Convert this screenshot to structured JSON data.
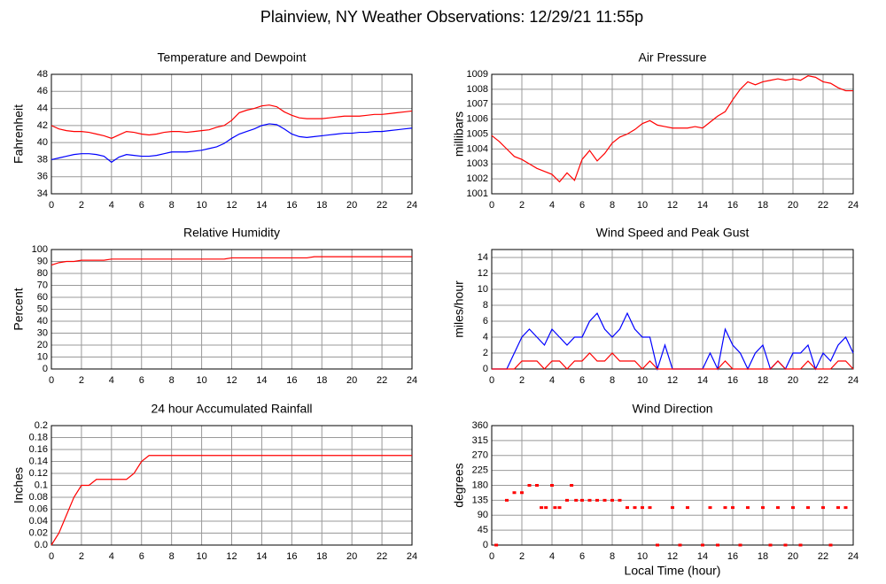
{
  "title": "Plainview, NY Weather Observations: 12/29/21 11:55p",
  "chart_data": [
    {
      "type": "line",
      "title": "Temperature and Dewpoint",
      "ylabel": "Fahrenheit",
      "x": [
        0,
        0.5,
        1,
        1.5,
        2,
        2.5,
        3,
        3.5,
        4,
        4.5,
        5,
        5.5,
        6,
        6.5,
        7,
        7.5,
        8,
        8.5,
        9,
        9.5,
        10,
        10.5,
        11,
        11.5,
        12,
        12.5,
        13,
        13.5,
        14,
        14.5,
        15,
        15.5,
        16,
        16.5,
        17,
        17.5,
        18,
        18.5,
        19,
        19.5,
        20,
        20.5,
        21,
        21.5,
        22,
        22.5,
        23,
        23.5,
        24
      ],
      "series": [
        {
          "color": "#ff0000",
          "values": [
            42.0,
            41.6,
            41.4,
            41.3,
            41.3,
            41.2,
            41.0,
            40.8,
            40.5,
            40.9,
            41.3,
            41.2,
            41.0,
            40.9,
            41.0,
            41.2,
            41.3,
            41.3,
            41.2,
            41.3,
            41.4,
            41.5,
            41.8,
            42.0,
            42.6,
            43.5,
            43.8,
            44.0,
            44.3,
            44.4,
            44.2,
            43.6,
            43.2,
            42.9,
            42.8,
            42.8,
            42.8,
            42.9,
            43.0,
            43.1,
            43.1,
            43.1,
            43.2,
            43.3,
            43.3,
            43.4,
            43.5,
            43.6,
            43.7
          ]
        },
        {
          "color": "#0000ff",
          "values": [
            38.0,
            38.2,
            38.4,
            38.6,
            38.7,
            38.7,
            38.6,
            38.4,
            37.7,
            38.3,
            38.6,
            38.5,
            38.4,
            38.4,
            38.5,
            38.7,
            38.9,
            38.9,
            38.9,
            39.0,
            39.1,
            39.3,
            39.5,
            39.9,
            40.5,
            41.0,
            41.3,
            41.6,
            42.0,
            42.2,
            42.1,
            41.6,
            41.0,
            40.7,
            40.6,
            40.7,
            40.8,
            40.9,
            41.0,
            41.1,
            41.1,
            41.2,
            41.2,
            41.3,
            41.3,
            41.4,
            41.5,
            41.6,
            41.7
          ]
        }
      ],
      "xlim": [
        0,
        24
      ],
      "xticks": [
        0,
        2,
        4,
        6,
        8,
        10,
        12,
        14,
        16,
        18,
        20,
        22,
        24
      ],
      "ylim": [
        34,
        48
      ],
      "yticks": [
        34,
        36,
        38,
        40,
        42,
        44,
        46,
        48
      ],
      "grid": true
    },
    {
      "type": "line",
      "title": "Air Pressure",
      "ylabel": "millibars",
      "x": [
        0,
        0.5,
        1,
        1.5,
        2,
        2.5,
        3,
        3.5,
        4,
        4.5,
        5,
        5.5,
        6,
        6.5,
        7,
        7.5,
        8,
        8.5,
        9,
        9.5,
        10,
        10.5,
        11,
        11.5,
        12,
        12.5,
        13,
        13.5,
        14,
        14.5,
        15,
        15.5,
        16,
        16.5,
        17,
        17.5,
        18,
        18.5,
        19,
        19.5,
        20,
        20.5,
        21,
        21.5,
        22,
        22.5,
        23,
        23.5,
        24
      ],
      "series": [
        {
          "color": "#ff0000",
          "values": [
            1004.9,
            1004.5,
            1004.0,
            1003.5,
            1003.3,
            1003.0,
            1002.7,
            1002.5,
            1002.3,
            1001.8,
            1002.4,
            1001.9,
            1003.3,
            1003.9,
            1003.2,
            1003.7,
            1004.4,
            1004.8,
            1005.0,
            1005.3,
            1005.7,
            1005.9,
            1005.6,
            1005.5,
            1005.4,
            1005.4,
            1005.4,
            1005.5,
            1005.4,
            1005.8,
            1006.2,
            1006.5,
            1007.3,
            1008.0,
            1008.5,
            1008.3,
            1008.5,
            1008.6,
            1008.7,
            1008.6,
            1008.7,
            1008.6,
            1008.9,
            1008.8,
            1008.5,
            1008.4,
            1008.1,
            1007.9,
            1007.9
          ]
        }
      ],
      "xlim": [
        0,
        24
      ],
      "xticks": [
        0,
        2,
        4,
        6,
        8,
        10,
        12,
        14,
        16,
        18,
        20,
        22,
        24
      ],
      "ylim": [
        1001,
        1009
      ],
      "yticks": [
        1001,
        1002,
        1003,
        1004,
        1005,
        1006,
        1007,
        1008,
        1009
      ],
      "grid": true
    },
    {
      "type": "line",
      "title": "Relative Humidity",
      "ylabel": "Percent",
      "x": [
        0,
        0.5,
        1,
        1.5,
        2,
        2.5,
        3,
        3.5,
        4,
        4.5,
        5,
        5.5,
        6,
        6.5,
        7,
        7.5,
        8,
        8.5,
        9,
        9.5,
        10,
        10.5,
        11,
        11.5,
        12,
        12.5,
        13,
        13.5,
        14,
        14.5,
        15,
        15.5,
        16,
        16.5,
        17,
        17.5,
        18,
        18.5,
        19,
        19.5,
        20,
        20.5,
        21,
        21.5,
        22,
        22.5,
        23,
        23.5,
        24
      ],
      "series": [
        {
          "color": "#ff0000",
          "values": [
            87,
            89,
            90,
            90,
            91,
            91,
            91,
            91,
            92,
            92,
            92,
            92,
            92,
            92,
            92,
            92,
            92,
            92,
            92,
            92,
            92,
            92,
            92,
            92,
            93,
            93,
            93,
            93,
            93,
            93,
            93,
            93,
            93,
            93,
            93,
            94,
            94,
            94,
            94,
            94,
            94,
            94,
            94,
            94,
            94,
            94,
            94,
            94,
            94
          ]
        }
      ],
      "xlim": [
        0,
        24
      ],
      "xticks": [
        0,
        2,
        4,
        6,
        8,
        10,
        12,
        14,
        16,
        18,
        20,
        22,
        24
      ],
      "ylim": [
        0,
        100
      ],
      "yticks": [
        0,
        10,
        20,
        30,
        40,
        50,
        60,
        70,
        80,
        90,
        100
      ],
      "grid": true
    },
    {
      "type": "line",
      "title": "Wind Speed and Peak Gust",
      "ylabel": "miles/hour",
      "x": [
        0,
        0.5,
        1,
        1.5,
        2,
        2.5,
        3,
        3.5,
        4,
        4.5,
        5,
        5.5,
        6,
        6.5,
        7,
        7.5,
        8,
        8.5,
        9,
        9.5,
        10,
        10.5,
        11,
        11.5,
        12,
        12.5,
        13,
        13.5,
        14,
        14.5,
        15,
        15.5,
        16,
        16.5,
        17,
        17.5,
        18,
        18.5,
        19,
        19.5,
        20,
        20.5,
        21,
        21.5,
        22,
        22.5,
        23,
        23.5,
        24
      ],
      "series": [
        {
          "color": "#0000ff",
          "values": [
            0,
            0,
            0,
            2,
            4,
            5,
            4,
            3,
            5,
            4,
            3,
            4,
            4,
            6,
            7,
            5,
            4,
            5,
            7,
            5,
            4,
            4,
            0,
            3,
            0,
            0,
            0,
            0,
            0,
            2,
            0,
            5,
            3,
            2,
            0,
            2,
            3,
            0,
            1,
            0,
            2,
            2,
            3,
            0,
            2,
            1,
            3,
            4,
            2
          ]
        },
        {
          "color": "#ff0000",
          "values": [
            0,
            0,
            0,
            0,
            1,
            1,
            1,
            0,
            1,
            1,
            0,
            1,
            1,
            2,
            1,
            1,
            2,
            1,
            1,
            1,
            0,
            1,
            0,
            0,
            0,
            0,
            0,
            0,
            0,
            0,
            0,
            1,
            0,
            0,
            0,
            0,
            0,
            0,
            1,
            0,
            0,
            0,
            1,
            0,
            0,
            0,
            1,
            1,
            0
          ]
        }
      ],
      "xlim": [
        0,
        24
      ],
      "xticks": [
        0,
        2,
        4,
        6,
        8,
        10,
        12,
        14,
        16,
        18,
        20,
        22,
        24
      ],
      "ylim": [
        0,
        15
      ],
      "yticks": [
        0,
        2,
        4,
        6,
        8,
        10,
        12,
        14
      ],
      "grid": true
    },
    {
      "type": "line",
      "title": "24 hour Accumulated Rainfall",
      "ylabel": "Inches",
      "x": [
        0,
        0.5,
        1,
        1.5,
        2,
        2.5,
        3,
        3.5,
        4,
        4.5,
        5,
        5.5,
        6,
        6.5,
        7,
        7.5,
        8,
        8.5,
        9,
        9.5,
        10,
        10.5,
        11,
        11.5,
        12,
        12.5,
        13,
        13.5,
        14,
        14.5,
        15,
        15.5,
        16,
        16.5,
        17,
        17.5,
        18,
        18.5,
        19,
        19.5,
        20,
        20.5,
        21,
        21.5,
        22,
        22.5,
        23,
        23.5,
        24
      ],
      "series": [
        {
          "color": "#ff0000",
          "values": [
            0.0,
            0.02,
            0.05,
            0.08,
            0.1,
            0.1,
            0.11,
            0.11,
            0.11,
            0.11,
            0.11,
            0.12,
            0.14,
            0.15,
            0.15,
            0.15,
            0.15,
            0.15,
            0.15,
            0.15,
            0.15,
            0.15,
            0.15,
            0.15,
            0.15,
            0.15,
            0.15,
            0.15,
            0.15,
            0.15,
            0.15,
            0.15,
            0.15,
            0.15,
            0.15,
            0.15,
            0.15,
            0.15,
            0.15,
            0.15,
            0.15,
            0.15,
            0.15,
            0.15,
            0.15,
            0.15,
            0.15,
            0.15,
            0.15
          ]
        }
      ],
      "xlim": [
        0,
        24
      ],
      "xticks": [
        0,
        2,
        4,
        6,
        8,
        10,
        12,
        14,
        16,
        18,
        20,
        22,
        24
      ],
      "ylim": [
        0,
        0.2
      ],
      "yticks": [
        {
          "value": 0,
          "label": "0.0"
        },
        0.02,
        0.04,
        0.06,
        0.08,
        0.1,
        0.12,
        0.14,
        0.16,
        0.18,
        0.2
      ],
      "grid": true
    },
    {
      "type": "scatter",
      "title": "Wind Direction",
      "ylabel": "degrees",
      "xlabel": "Local Time (hour)",
      "x": [
        0.3,
        1,
        1.5,
        2,
        2.5,
        3,
        3.3,
        3.6,
        4,
        4.2,
        4.5,
        5,
        5.3,
        5.6,
        6,
        6.5,
        7,
        7.5,
        8,
        8.5,
        9,
        9.5,
        10,
        10.5,
        11,
        12,
        12.5,
        13,
        14,
        14.5,
        15,
        15.5,
        16,
        16.5,
        17,
        18,
        18.5,
        19,
        19.5,
        20,
        20.5,
        21,
        22,
        22.5,
        23,
        23.5
      ],
      "values": [
        0,
        135,
        158,
        158,
        180,
        180,
        113,
        113,
        180,
        113,
        113,
        135,
        180,
        135,
        135,
        135,
        135,
        135,
        135,
        135,
        113,
        113,
        113,
        113,
        0,
        113,
        0,
        113,
        0,
        113,
        0,
        113,
        113,
        0,
        113,
        113,
        0,
        113,
        0,
        113,
        0,
        113,
        113,
        0,
        113,
        113
      ],
      "color": "#ff0000",
      "xlim": [
        0,
        24
      ],
      "xticks": [
        0,
        2,
        4,
        6,
        8,
        10,
        12,
        14,
        16,
        18,
        20,
        22,
        24
      ],
      "ylim": [
        0,
        360
      ],
      "yticks": [
        0,
        45,
        90,
        135,
        180,
        225,
        270,
        315,
        360
      ],
      "grid": true
    }
  ]
}
